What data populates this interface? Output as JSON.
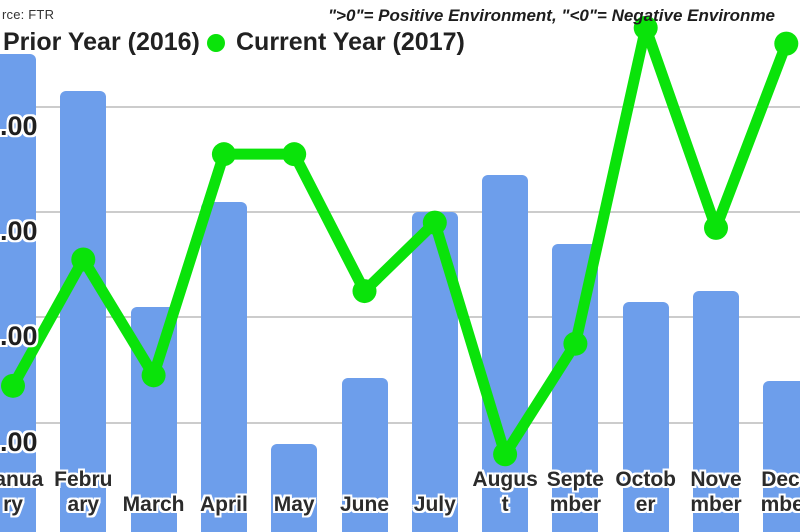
{
  "header": {
    "source": "rce: FTR",
    "annotation": "\">0\"= Positive Environment, \"<0\"= Negative Environme"
  },
  "legend": {
    "prior": {
      "label": "Prior Year (2016)",
      "color": "#6d9eeb"
    },
    "current": {
      "label": "Current Year (2017)",
      "color": "#0ae30a"
    }
  },
  "chart_data": {
    "type": "bar+line combo",
    "title": "",
    "xlabel": "",
    "ylabel": "",
    "categories": [
      "January",
      "February",
      "March",
      "April",
      "May",
      "June",
      "July",
      "August",
      "September",
      "October",
      "November",
      "December"
    ],
    "x_label_lines": [
      [
        "Janua",
        "ry"
      ],
      [
        "Febru",
        "ary"
      ],
      [
        "March"
      ],
      [
        "April"
      ],
      [
        "May"
      ],
      [
        "June"
      ],
      [
        "July"
      ],
      [
        "Augus",
        "t"
      ],
      [
        "Septe",
        "mber"
      ],
      [
        "Octob",
        "er"
      ],
      [
        "Nove",
        "mber"
      ],
      [
        "Dece",
        "mber"
      ]
    ],
    "series": [
      {
        "name": "Prior Year (2016)",
        "type": "bar",
        "color": "#6d9eeb",
        "values": [
          9.0,
          8.3,
          4.2,
          6.2,
          1.6,
          2.85,
          6.0,
          6.7,
          5.4,
          4.3,
          4.5,
          2.8
        ]
      },
      {
        "name": "Current Year (2017)",
        "type": "line",
        "color": "#0ae30a",
        "values": [
          2.7,
          5.1,
          2.9,
          7.1,
          7.1,
          4.5,
          5.8,
          1.4,
          3.5,
          9.5,
          5.7,
          9.2
        ]
      }
    ],
    "ylim": [
      0,
      10
    ],
    "y_gridlines": [
      8,
      6,
      4,
      2
    ],
    "y_tick_labels": [
      ".00",
      ".00",
      ".00",
      ".00"
    ],
    "grid": "horizontal gridlines on",
    "legend_position": "top-left",
    "notes_visible": [
      "chart cropped at left, right and bottom edges; y-axis tick labels truncated to '.00'"
    ]
  }
}
